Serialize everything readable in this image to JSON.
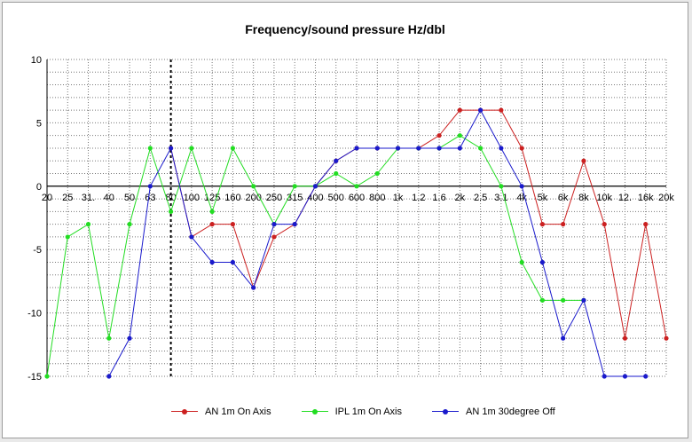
{
  "chart_data": {
    "type": "line",
    "title": "Frequency/sound pressure Hz/dbl",
    "categories": [
      "20",
      "25",
      "31.",
      "40",
      "50",
      "63",
      "80",
      "100",
      "125",
      "160",
      "200",
      "250",
      "315",
      "400",
      "500",
      "600",
      "800",
      "1k",
      "1.2",
      "1.6",
      "2k",
      "2.5",
      "3.1",
      "4k",
      "5k",
      "6k",
      "8k",
      "10k",
      "12.",
      "16k",
      "20k"
    ],
    "ylim": [
      -15,
      10
    ],
    "yticks": [
      "10",
      "5",
      "0",
      "-5",
      "-10",
      "-15"
    ],
    "grid": true,
    "legend_position": "bottom",
    "marker_category": "80",
    "series": [
      {
        "name": "AN 1m On Axis",
        "color": "#cc2020",
        "values": [
          null,
          null,
          null,
          null,
          null,
          null,
          3,
          -4,
          -3,
          -3,
          -8,
          -4,
          -3,
          0,
          2,
          3,
          3,
          3,
          3,
          4,
          6,
          6,
          6,
          3,
          -3,
          -3,
          2,
          -3,
          -12,
          -3,
          -12
        ]
      },
      {
        "name": "IPL 1m On Axis",
        "color": "#22dd22",
        "values": [
          -15,
          -4,
          -3,
          -12,
          -3,
          3,
          -2,
          3,
          -2,
          3,
          0,
          -3,
          0,
          0,
          1,
          0,
          1,
          3,
          3,
          3,
          4,
          3,
          0,
          -6,
          -9,
          -9,
          -9,
          null,
          null,
          null,
          null
        ]
      },
      {
        "name": "AN 1m 30degree Off",
        "color": "#1a1acc",
        "values": [
          null,
          null,
          null,
          -15,
          -12,
          0,
          3,
          -4,
          -6,
          -6,
          -8,
          -3,
          -3,
          0,
          2,
          3,
          3,
          3,
          3,
          3,
          3,
          6,
          3,
          0,
          -6,
          -12,
          -9,
          -15,
          -15,
          -15,
          null
        ]
      }
    ]
  }
}
